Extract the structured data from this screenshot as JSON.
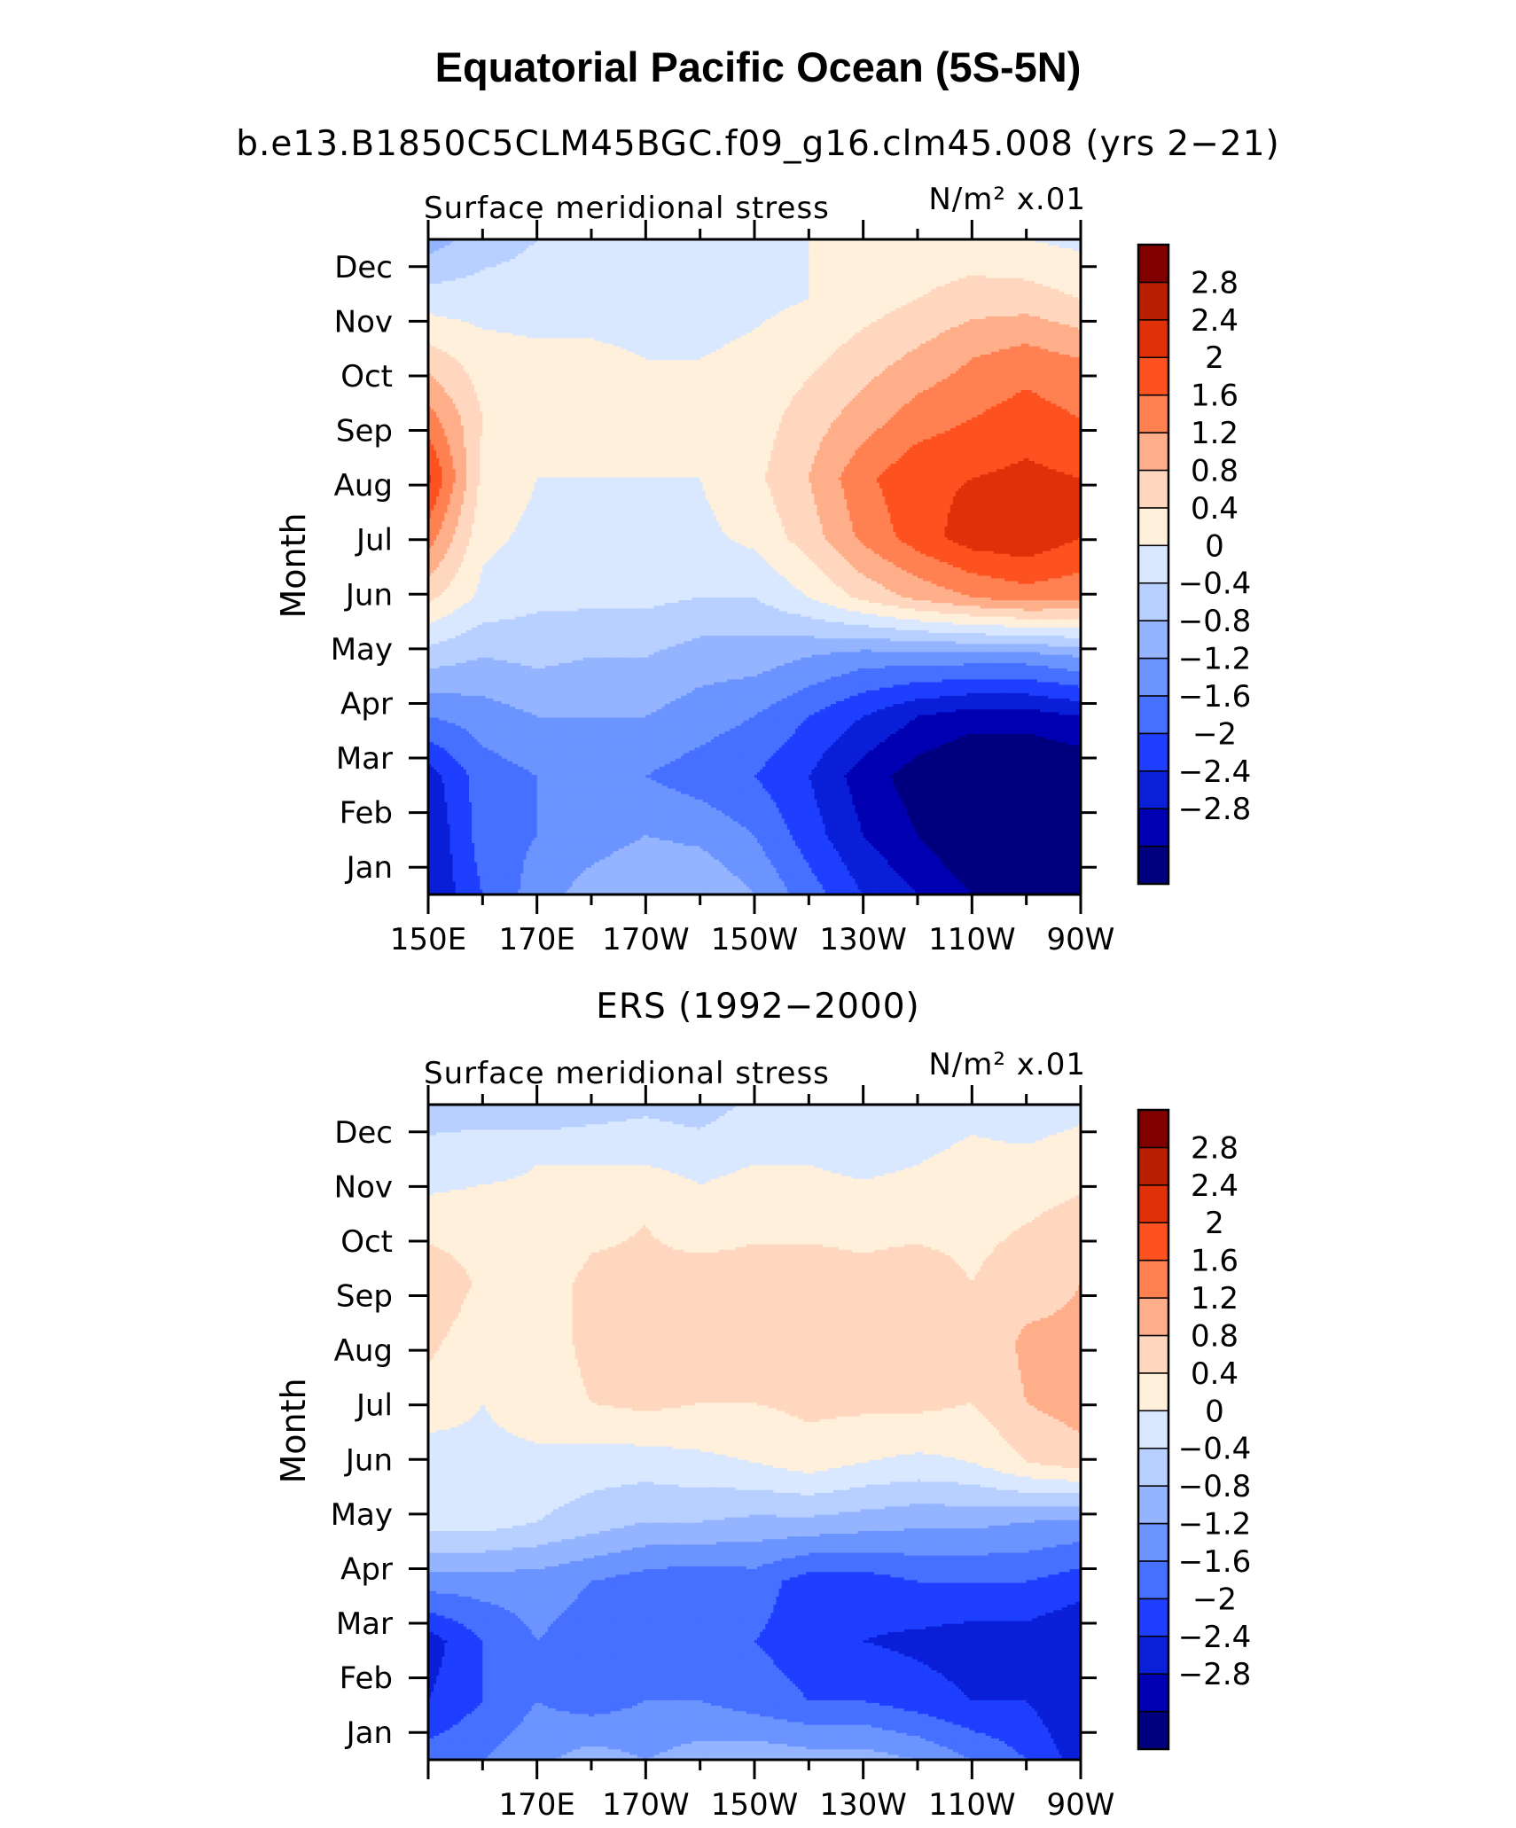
{
  "title": "Equatorial Pacific Ocean (5S-5N)",
  "panels": [
    {
      "subtitle": "b.e13.B1850C5CLM45BGC.f09_g16.clm45.008 (yrs 2−21)",
      "left_label": "Surface meridional stress",
      "right_label": "N/m² x.01",
      "ylabel": "Month"
    },
    {
      "subtitle": "ERS (1992−2000)",
      "left_label": "Surface meridional stress",
      "right_label": "N/m² x.01",
      "ylabel": "Month"
    }
  ],
  "chart_data": [
    {
      "type": "heatmap",
      "title": "b.e13.B1850C5CLM45BGC.f09_g16.clm45.008 (yrs 2−21)",
      "xlabel": "",
      "ylabel": "Month",
      "x_ticks": [
        "150E",
        "170E",
        "170W",
        "150W",
        "130W",
        "110W",
        "90W"
      ],
      "x": [
        150,
        160,
        170,
        180,
        190,
        200,
        210,
        220,
        230,
        240,
        250,
        260,
        270
      ],
      "y_ticks": [
        "Jan",
        "Feb",
        "Mar",
        "Apr",
        "May",
        "Jun",
        "Jul",
        "Aug",
        "Sep",
        "Oct",
        "Nov",
        "Dec"
      ],
      "xlim": [
        150,
        270
      ],
      "z": [
        [
          -2.4,
          -1.6,
          -1.0,
          -0.6,
          -0.4,
          -0.4,
          -0.8,
          -1.4,
          -2.0,
          -2.4,
          -2.8,
          -3.0,
          -2.8
        ],
        [
          -2.4,
          -1.4,
          -1.2,
          -1.0,
          -0.8,
          -0.9,
          -1.2,
          -1.8,
          -2.4,
          -2.8,
          -3.2,
          -3.2,
          -3.0
        ],
        [
          -2.2,
          -1.4,
          -1.2,
          -1.2,
          -1.2,
          -1.4,
          -1.6,
          -2.0,
          -2.6,
          -3.0,
          -3.3,
          -3.3,
          -3.2
        ],
        [
          -1.2,
          -1.0,
          -0.8,
          -0.8,
          -0.8,
          -1.0,
          -1.2,
          -1.6,
          -2.0,
          -2.4,
          -2.6,
          -2.6,
          -2.4
        ],
        [
          -0.2,
          -0.4,
          -0.3,
          -0.4,
          -0.4,
          -0.6,
          -0.6,
          -0.8,
          -1.0,
          -1.0,
          -1.0,
          -1.0,
          -0.8
        ],
        [
          0.9,
          0.3,
          0.1,
          0.1,
          0.1,
          0.0,
          0.0,
          0.4,
          0.9,
          1.3,
          1.6,
          1.8,
          1.7
        ],
        [
          1.8,
          0.5,
          0.3,
          0.4,
          0.3,
          0.3,
          0.5,
          1.0,
          1.7,
          2.2,
          2.6,
          2.7,
          2.4
        ],
        [
          2.5,
          0.7,
          0.4,
          0.4,
          0.4,
          0.4,
          0.7,
          1.2,
          1.9,
          2.3,
          2.4,
          2.5,
          2.4
        ],
        [
          1.8,
          0.8,
          0.5,
          0.5,
          0.5,
          0.4,
          0.6,
          1.0,
          1.4,
          1.8,
          2.0,
          2.2,
          2.0
        ],
        [
          1.0,
          0.6,
          0.5,
          0.5,
          0.4,
          0.4,
          0.5,
          0.7,
          1.0,
          1.3,
          1.6,
          1.8,
          1.6
        ],
        [
          0.2,
          0.2,
          0.2,
          0.2,
          0.2,
          0.2,
          0.3,
          0.4,
          0.6,
          0.8,
          1.0,
          1.0,
          0.8
        ],
        [
          -0.6,
          -0.2,
          0.0,
          0.1,
          0.2,
          0.2,
          0.3,
          0.4,
          0.5,
          0.5,
          0.5,
          0.4,
          0.3
        ]
      ],
      "levels": [
        -2.8,
        -2.4,
        -2.0,
        -1.6,
        -1.2,
        -0.8,
        -0.4,
        0,
        0.4,
        0.8,
        1.2,
        1.6,
        2.0,
        2.4,
        2.8
      ],
      "colorbar_labels": [
        "2.8",
        "2.4",
        "2",
        "1.6",
        "1.2",
        "0.8",
        "0.4",
        "0",
        "−0.4",
        "−0.8",
        "−1.2",
        "−1.6",
        "−2",
        "−2.4",
        "−2.8"
      ]
    },
    {
      "type": "heatmap",
      "title": "ERS (1992−2000)",
      "xlabel": "",
      "ylabel": "Month",
      "x_ticks": [
        "170E",
        "170W",
        "150W",
        "130W",
        "110W",
        "90W"
      ],
      "x": [
        150,
        160,
        170,
        180,
        190,
        200,
        210,
        220,
        230,
        240,
        250,
        260,
        270
      ],
      "y_ticks": [
        "Jan",
        "Feb",
        "Mar",
        "Apr",
        "May",
        "Jun",
        "Jul",
        "Aug",
        "Sep",
        "Oct",
        "Nov",
        "Dec"
      ],
      "xlim": [
        150,
        270
      ],
      "z": [
        [
          -1.4,
          -1.2,
          -0.9,
          -0.6,
          -0.8,
          -0.6,
          -0.5,
          -0.6,
          -0.6,
          -0.8,
          -1.2,
          -1.6,
          -2.2
        ],
        [
          -2.0,
          -1.6,
          -1.2,
          -1.4,
          -1.2,
          -1.2,
          -1.4,
          -1.6,
          -1.6,
          -1.8,
          -2.0,
          -2.0,
          -2.4
        ],
        [
          -2.2,
          -1.6,
          -1.2,
          -1.4,
          -1.2,
          -1.4,
          -1.6,
          -1.8,
          -2.0,
          -2.1,
          -2.2,
          -2.2,
          -2.4
        ],
        [
          -1.0,
          -1.0,
          -1.0,
          -1.2,
          -1.4,
          -1.5,
          -1.4,
          -1.8,
          -1.8,
          -1.6,
          -1.6,
          -1.6,
          -1.8
        ],
        [
          0.2,
          0.2,
          0.0,
          -0.2,
          -0.4,
          -0.4,
          -0.5,
          -0.5,
          -0.6,
          -0.7,
          -0.7,
          -0.8,
          -0.9
        ],
        [
          0.2,
          0.3,
          0.3,
          0.2,
          0.2,
          0.3,
          0.4,
          0.6,
          0.4,
          0.3,
          0.4,
          0.8,
          1.0
        ],
        [
          0.6,
          0.4,
          0.6,
          0.8,
          0.9,
          0.8,
          0.8,
          0.9,
          0.9,
          0.9,
          0.8,
          1.2,
          1.4
        ],
        [
          0.9,
          0.5,
          0.6,
          0.9,
          0.9,
          1.0,
          1.0,
          1.0,
          0.8,
          1.0,
          0.8,
          1.3,
          1.3
        ],
        [
          1.2,
          0.7,
          0.6,
          0.9,
          0.9,
          1.0,
          1.0,
          1.0,
          0.9,
          1.0,
          0.8,
          1.0,
          1.2
        ],
        [
          0.6,
          0.6,
          0.5,
          0.7,
          0.8,
          0.6,
          0.7,
          0.7,
          0.7,
          0.7,
          0.7,
          0.8,
          1.0
        ],
        [
          0.2,
          0.3,
          0.4,
          0.4,
          0.4,
          0.3,
          0.4,
          0.4,
          0.3,
          0.4,
          0.5,
          0.5,
          0.6
        ],
        [
          -0.2,
          -0.2,
          -0.3,
          -0.2,
          -0.1,
          -0.2,
          0.1,
          0.0,
          0.1,
          0.2,
          0.3,
          0.2,
          0.3
        ]
      ],
      "levels": [
        -2.8,
        -2.4,
        -2.0,
        -1.6,
        -1.2,
        -0.8,
        -0.4,
        0,
        0.4,
        0.8,
        1.2,
        1.6,
        2.0,
        2.4,
        2.8
      ],
      "colorbar_labels": [
        "2.8",
        "2.4",
        "2",
        "1.6",
        "1.2",
        "0.8",
        "0.4",
        "0",
        "−0.4",
        "−0.8",
        "−1.2",
        "−1.6",
        "−2",
        "−2.4",
        "−2.8"
      ]
    }
  ],
  "colors": {
    "palette": [
      "#00007f",
      "#0000b2",
      "#0a1fd8",
      "#1f3fff",
      "#4670ff",
      "#6b94ff",
      "#94b4ff",
      "#b8d0ff",
      "#d9e8ff",
      "#fff0dc",
      "#ffd6be",
      "#ffae8a",
      "#ff8050",
      "#fd5220",
      "#e0300a",
      "#b81f00",
      "#800000"
    ]
  }
}
